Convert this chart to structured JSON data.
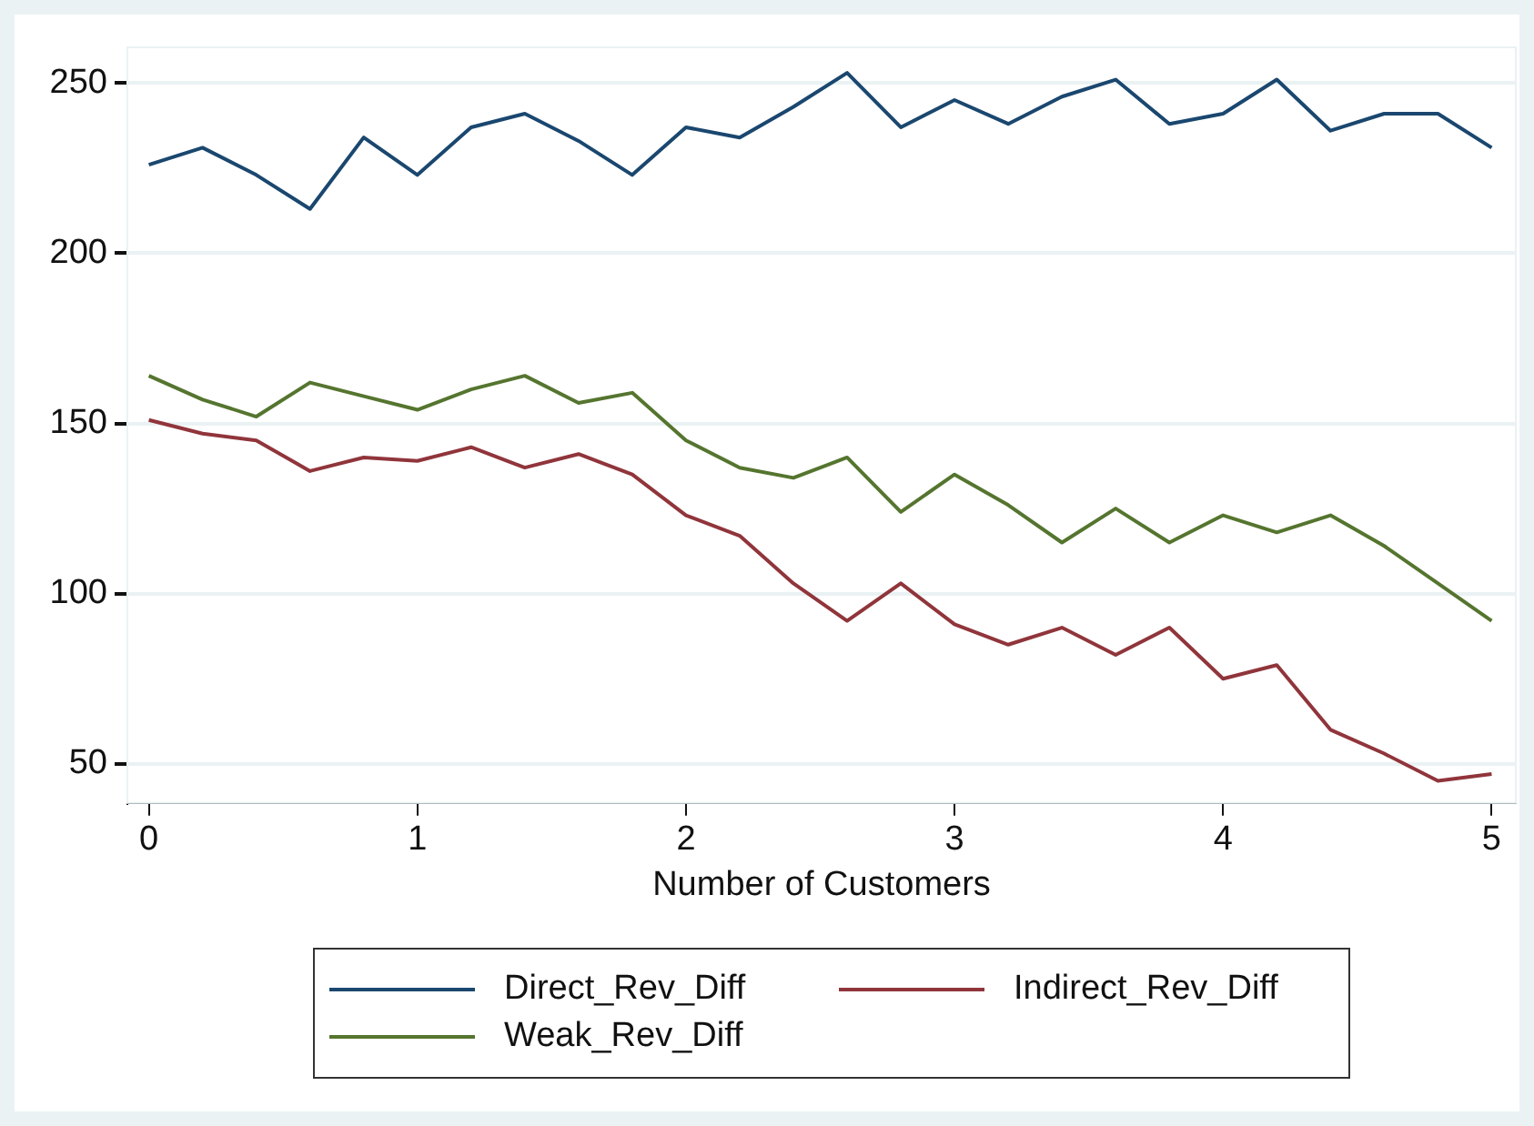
{
  "chart_data": {
    "type": "line",
    "xlabel": "Number of Customers",
    "x": [
      0,
      0.2,
      0.4,
      0.6,
      0.8,
      1,
      1.2,
      1.4,
      1.6,
      1.8,
      2,
      2.2,
      2.4,
      2.6,
      2.8,
      3,
      3.2,
      3.4,
      3.6,
      3.8,
      4,
      4.2,
      4.4,
      4.6,
      4.8,
      5
    ],
    "series": [
      {
        "name": "Direct_Rev_Diff",
        "color": "#1a476f",
        "values": [
          226,
          231,
          223,
          213,
          234,
          223,
          237,
          241,
          233,
          223,
          237,
          234,
          243,
          253,
          237,
          245,
          238,
          246,
          251,
          238,
          241,
          251,
          236,
          241,
          241,
          231
        ]
      },
      {
        "name": "Indirect_Rev_Diff",
        "color": "#90353b",
        "values": [
          151,
          147,
          145,
          136,
          140,
          139,
          143,
          137,
          141,
          135,
          123,
          117,
          103,
          92,
          103,
          91,
          85,
          90,
          82,
          90,
          75,
          79,
          60,
          53,
          45,
          47
        ]
      },
      {
        "name": "Weak_Rev_Diff",
        "color": "#55752f",
        "values": [
          164,
          157,
          152,
          162,
          158,
          154,
          160,
          164,
          156,
          159,
          145,
          137,
          134,
          140,
          124,
          135,
          126,
          115,
          125,
          115,
          123,
          118,
          123,
          114,
          103,
          92
        ]
      }
    ],
    "xlim": [
      -0.08,
      5.09
    ],
    "xticks": [
      0,
      1,
      2,
      3,
      4,
      5
    ],
    "ylim": [
      38.5,
      260.5
    ],
    "yticks": [
      50,
      100,
      150,
      200,
      250
    ],
    "grid": "y",
    "legend": "bottom",
    "marker": "none",
    "line_style": "solid"
  }
}
